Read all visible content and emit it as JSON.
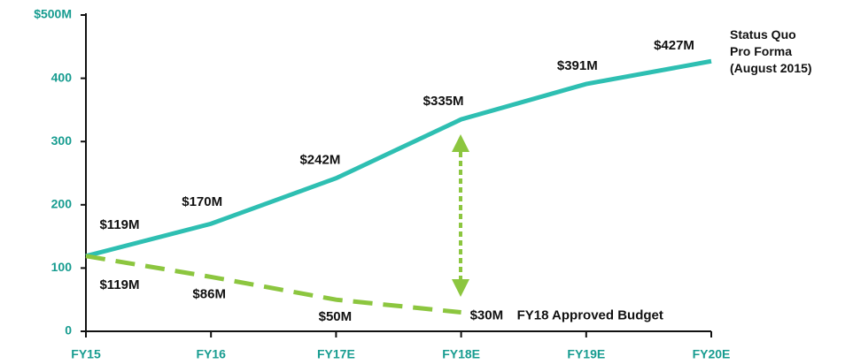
{
  "chart_data": {
    "type": "line",
    "categories": [
      "FY15",
      "FY16",
      "FY17E",
      "FY18E",
      "FY19E",
      "FY20E"
    ],
    "series": [
      {
        "name": "Status Quo\nPro Forma\n(August 2015)",
        "color": "#2ebfb2",
        "dashed": false,
        "values": [
          119,
          170,
          242,
          335,
          391,
          427
        ],
        "value_labels": [
          "$119M",
          "$170M",
          "$242M",
          "$335M",
          "$391M",
          "$427M"
        ]
      },
      {
        "name": "FY18 Approved Budget",
        "color": "#8cc63f",
        "dashed": true,
        "values": [
          119,
          86,
          50,
          30,
          null,
          null
        ],
        "value_labels": [
          "$119M",
          "$86M",
          "$50M",
          "$30M",
          null,
          null
        ]
      }
    ],
    "ylim": [
      0,
      500
    ],
    "yticks": [
      0,
      100,
      200,
      300,
      400,
      {
        "value": 500,
        "label": "$500M"
      }
    ]
  }
}
